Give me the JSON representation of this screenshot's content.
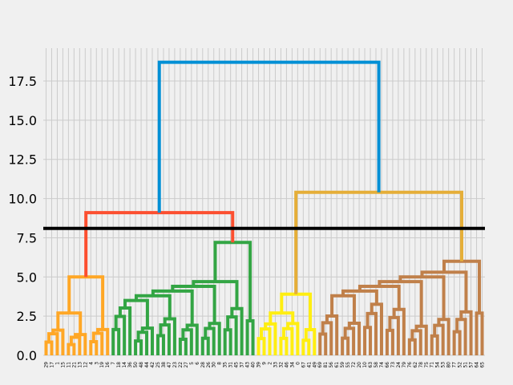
{
  "chart_data": {
    "type": "dendrogram",
    "title": "",
    "xlabel": "",
    "ylabel": "",
    "ylim": [
      0,
      19.6
    ],
    "grid": true,
    "background": "#f0f0f0",
    "y_ticks": [
      "0.0",
      "2.5",
      "5.0",
      "7.5",
      "10.0",
      "12.5",
      "15.0",
      "17.5"
    ],
    "y_tick_values": [
      0,
      2.5,
      5,
      7.5,
      10,
      12.5,
      15,
      17.5
    ],
    "cut_line": {
      "y": 8.1,
      "color": "#000000"
    },
    "leaf_labels": [
      "29",
      "17",
      "1",
      "15",
      "11",
      "21",
      "13",
      "12",
      "4",
      "3",
      "19",
      "16",
      "7",
      "18",
      "14",
      "36",
      "50",
      "48",
      "44",
      "42",
      "25",
      "38",
      "47",
      "23",
      "22",
      "27",
      "5",
      "6",
      "28",
      "26",
      "30",
      "8",
      "35",
      "31",
      "45",
      "37",
      "43",
      "40",
      "39",
      "9",
      "2",
      "33",
      "32",
      "46",
      "34",
      "0",
      "67",
      "41",
      "49",
      "69",
      "81",
      "56",
      "61",
      "59",
      "55",
      "72",
      "20",
      "10",
      "63",
      "58",
      "74",
      "66",
      "73",
      "24",
      "79",
      "76",
      "62",
      "78",
      "75",
      "71",
      "54",
      "53",
      "80",
      "77",
      "52",
      "51",
      "57",
      "64",
      "65"
    ],
    "colors": {
      "root": "#008fd5",
      "branch_left": "#fc4f30",
      "branch_right": "#e5ae38",
      "cluster_1": "#ffa726",
      "cluster_2": "#33a544",
      "cluster_3": "#ffee11",
      "cluster_4": "#c0804a"
    },
    "clusters": [
      {
        "name": "cluster_1",
        "color": "#ffa726",
        "leaves": 12,
        "height": 5.0
      },
      {
        "name": "cluster_2",
        "color": "#33a544",
        "leaves": 26,
        "height": 7.2
      },
      {
        "name": "cluster_3",
        "color": "#ffee11",
        "leaves": 11,
        "height": 3.9
      },
      {
        "name": "cluster_4",
        "color": "#c0804a",
        "leaves": 30,
        "height": 6.0
      }
    ],
    "merges": [
      {
        "color": "#fc4f30",
        "height": 9.1
      },
      {
        "color": "#e5ae38",
        "height": 10.4
      },
      {
        "color": "#008fd5",
        "height": 18.7
      }
    ]
  }
}
